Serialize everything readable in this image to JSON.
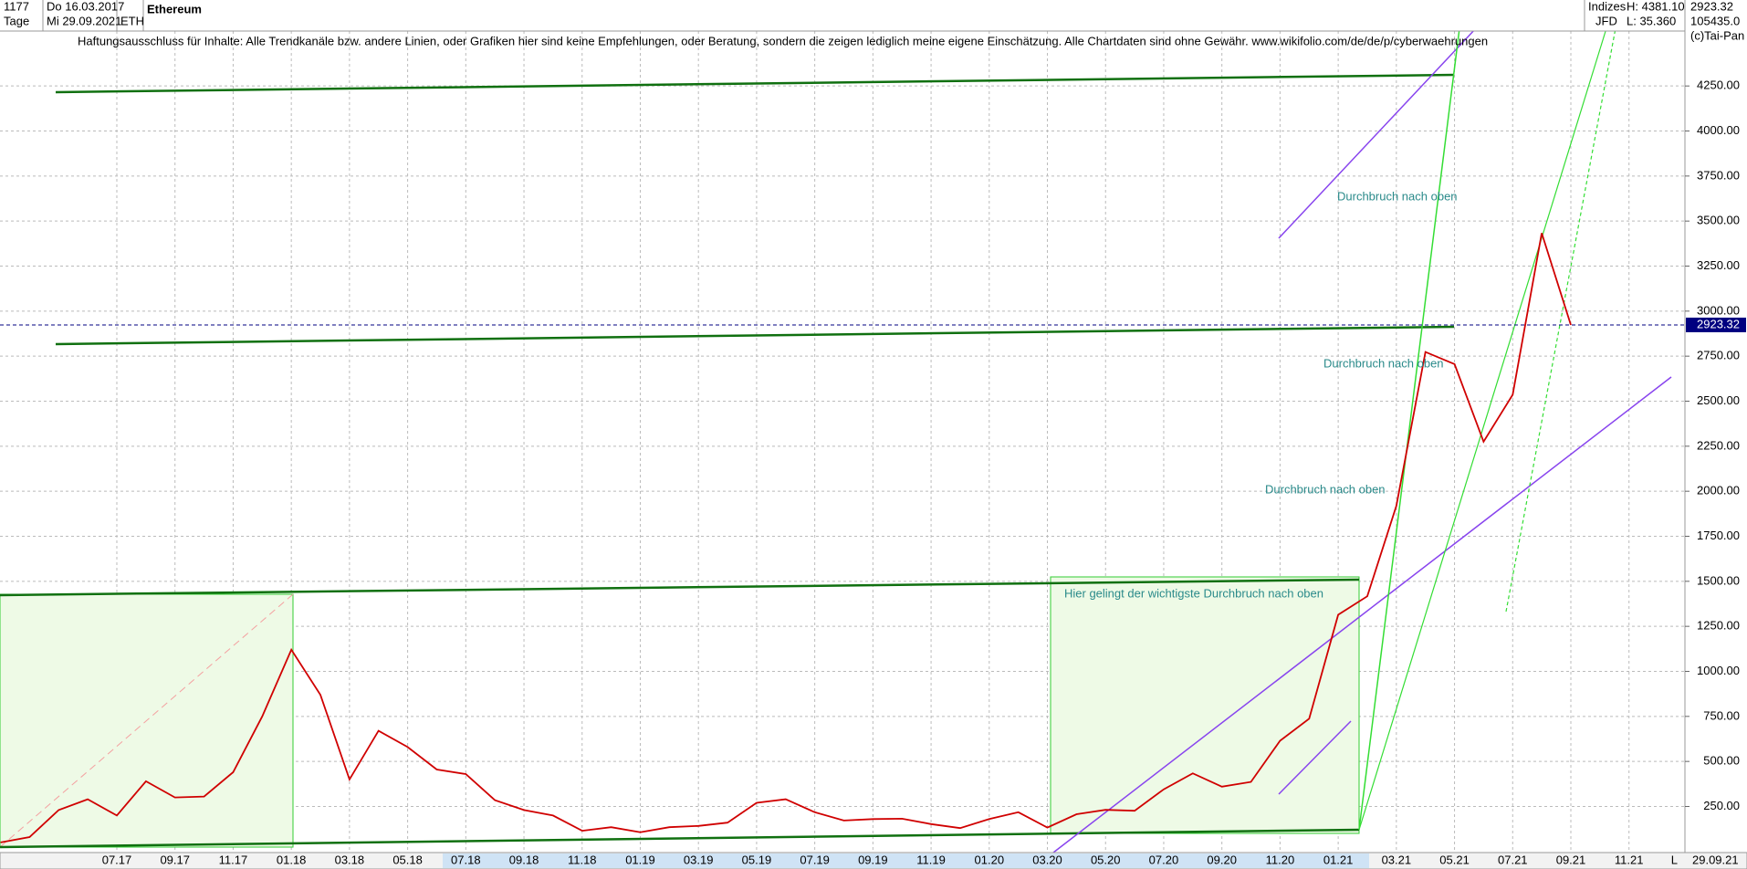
{
  "header": {
    "count": "1177",
    "start": "Do 16.03.2017",
    "period": "Tage",
    "end": "Mi 29.09.2021",
    "symbol": "ETH",
    "exchange_group": "Indizes",
    "broker": "JFD",
    "high": "H: 4381.10",
    "low": "L: 35.360",
    "volume": "105435.0",
    "copyright": "(c)Tai-Pan",
    "axis_mode": "L",
    "axis_date": "29.09.21"
  },
  "disclaimer": "Haftungsausschluss für Inhalte: Alle Trendkanäle bzw. andere Linien, oder Grafiken hier sind keine Empfehlungen, oder Beratung, sondern die zeigen lediglich meine eigene Einschätzung. Alle Chartdaten sind ohne Gewähr.  www.wikifolio.com/de/de/p/cyberwaehrungen",
  "chart_data": {
    "type": "line",
    "title": "Ethereum",
    "color": "#d00000",
    "x": [
      "03.17",
      "04.17",
      "05.17",
      "06.17",
      "07.17",
      "08.17",
      "09.17",
      "10.17",
      "11.17",
      "12.17",
      "01.18",
      "02.18",
      "03.18",
      "04.18",
      "05.18",
      "06.18",
      "07.18",
      "08.18",
      "09.18",
      "10.18",
      "11.18",
      "12.18",
      "01.19",
      "02.19",
      "03.19",
      "04.19",
      "05.19",
      "06.19",
      "07.19",
      "08.19",
      "09.19",
      "10.19",
      "11.19",
      "12.19",
      "01.20",
      "02.20",
      "03.20",
      "04.20",
      "05.20",
      "06.20",
      "07.20",
      "08.20",
      "09.20",
      "10.20",
      "11.20",
      "12.20",
      "01.21",
      "02.21",
      "03.21",
      "04.21",
      "05.21",
      "06.21",
      "07.21",
      "08.21",
      "09.21"
    ],
    "values": [
      50,
      80,
      230,
      290,
      200,
      390,
      300,
      305,
      440,
      750,
      1120,
      870,
      400,
      670,
      580,
      455,
      430,
      285,
      230,
      200,
      115,
      135,
      107,
      135,
      142,
      160,
      270,
      290,
      218,
      172,
      180,
      182,
      152,
      130,
      180,
      218,
      133,
      207,
      231,
      226,
      345,
      434,
      360,
      386,
      615,
      737,
      1314,
      1417,
      1918,
      2773,
      2706,
      2275,
      2536,
      3433,
      2923
    ],
    "last_price": 2923.32,
    "ylim": [
      -6,
      4555
    ],
    "yticks": [
      {
        "value": 250,
        "label": "250.00"
      },
      {
        "value": 500,
        "label": "500.00"
      },
      {
        "value": 750,
        "label": "750.00"
      },
      {
        "value": 1000,
        "label": "1000.00"
      },
      {
        "value": 1250,
        "label": "1250.00"
      },
      {
        "value": 1500,
        "label": "1500.00"
      },
      {
        "value": 1750,
        "label": "1750.00"
      },
      {
        "value": 2000,
        "label": "2000.00"
      },
      {
        "value": 2250,
        "label": "2250.00"
      },
      {
        "value": 2500,
        "label": "2500.00"
      },
      {
        "value": 2750,
        "label": "2750.00"
      },
      {
        "value": 3000,
        "label": "3000.00"
      },
      {
        "value": 3250,
        "label": "3250.00"
      },
      {
        "value": 3500,
        "label": "3500.00"
      },
      {
        "value": 3750,
        "label": "3750.00"
      },
      {
        "value": 4000,
        "label": "4000.00"
      },
      {
        "value": 4250,
        "label": "4250.00"
      }
    ],
    "xticks": [
      "07.17",
      "09.17",
      "11.17",
      "01.18",
      "03.18",
      "05.18",
      "07.18",
      "09.18",
      "11.18",
      "01.19",
      "03.19",
      "05.19",
      "07.19",
      "09.19",
      "11.19",
      "01.20",
      "03.20",
      "05.20",
      "07.20",
      "09.20",
      "11.20",
      "01.21",
      "03.21",
      "05.21",
      "07.21",
      "09.21",
      "11.21"
    ],
    "grid": true,
    "annotations": [
      "Durchbruch nach oben",
      "Durchbruch nach oben",
      "Durchbruch nach oben",
      "Hier gelingt der wichtigste Durchbruch nach oben"
    ]
  }
}
